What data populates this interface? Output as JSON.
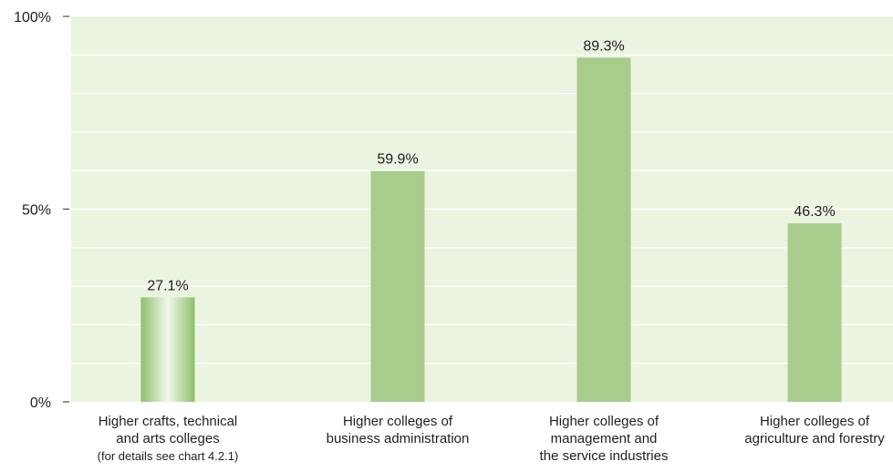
{
  "chart_data": {
    "type": "bar",
    "title": "",
    "xlabel": "",
    "ylabel": "",
    "ylim": [
      0,
      100
    ],
    "y_ticks": [
      {
        "value": 0,
        "label": "0%"
      },
      {
        "value": 50,
        "label": "50%"
      },
      {
        "value": 100,
        "label": "100%"
      }
    ],
    "minor_gridline_step": 10,
    "grid": true,
    "legend": "none",
    "categories": [
      [
        "Higher crafts, technical",
        "and arts colleges",
        "(for details see chart 4.2.1)"
      ],
      [
        "Higher colleges of",
        "business administration"
      ],
      [
        "Higher colleges of",
        "management and",
        "the service industries"
      ],
      [
        "Higher colleges of",
        "agriculture and forestry"
      ]
    ],
    "values": [
      27.1,
      59.9,
      89.3,
      46.3
    ],
    "value_labels": [
      "27.1%",
      "59.9%",
      "89.3%",
      "46.3%"
    ],
    "highlighted_bar": 0,
    "colors": {
      "plot_background": "#ebf3e1",
      "gridline": "#ffffff",
      "bar": "#a8cc8c",
      "bar_highlight_edge": "#8fbf6a",
      "bar_highlight_center": "#f2f8ea",
      "axis": "#4d4d4d",
      "text": "#231f20"
    }
  }
}
